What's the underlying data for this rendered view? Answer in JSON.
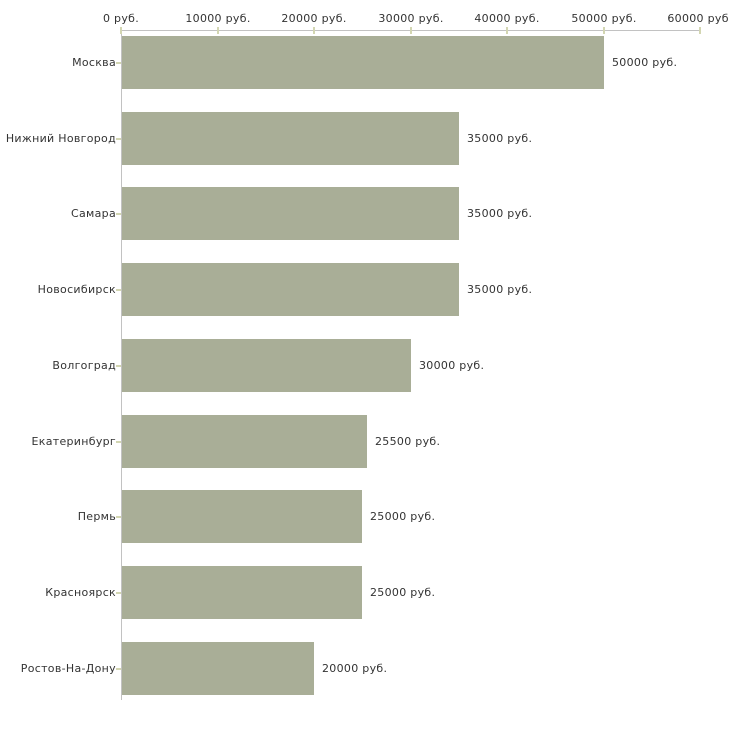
{
  "chart_data": {
    "type": "bar",
    "orientation": "horizontal",
    "title": "",
    "xlabel": "",
    "ylabel": "",
    "unit": "руб.",
    "categories": [
      "Москва",
      "Нижний Новгород",
      "Самара",
      "Новосибирск",
      "Волгоград",
      "Екатеринбург",
      "Пермь",
      "Красноярск",
      "Ростов-На-Дону"
    ],
    "values": [
      50000,
      35000,
      35000,
      35000,
      30000,
      25500,
      25000,
      25000,
      20000
    ],
    "value_labels": [
      "50000 руб.",
      "35000 руб.",
      "35000 руб.",
      "35000 руб.",
      "30000 руб.",
      "25500 руб.",
      "25000 руб.",
      "25000 руб.",
      "20000 руб."
    ],
    "x_axis": {
      "position": "top",
      "range": [
        0,
        60000
      ],
      "ticks": [
        0,
        10000,
        20000,
        30000,
        40000,
        50000,
        60000
      ],
      "tick_labels": [
        "0 руб.",
        "10000 руб.",
        "20000 руб.",
        "30000 руб.",
        "40000 руб.",
        "50000 руб.",
        "60000 руб."
      ]
    },
    "grid": false,
    "legend": false,
    "colors": {
      "bar": "#a9ae97",
      "axis_line": "#c2c2c2",
      "tick_mark": "#d3d6b2",
      "text": "#333333",
      "background": "#ffffff"
    }
  }
}
